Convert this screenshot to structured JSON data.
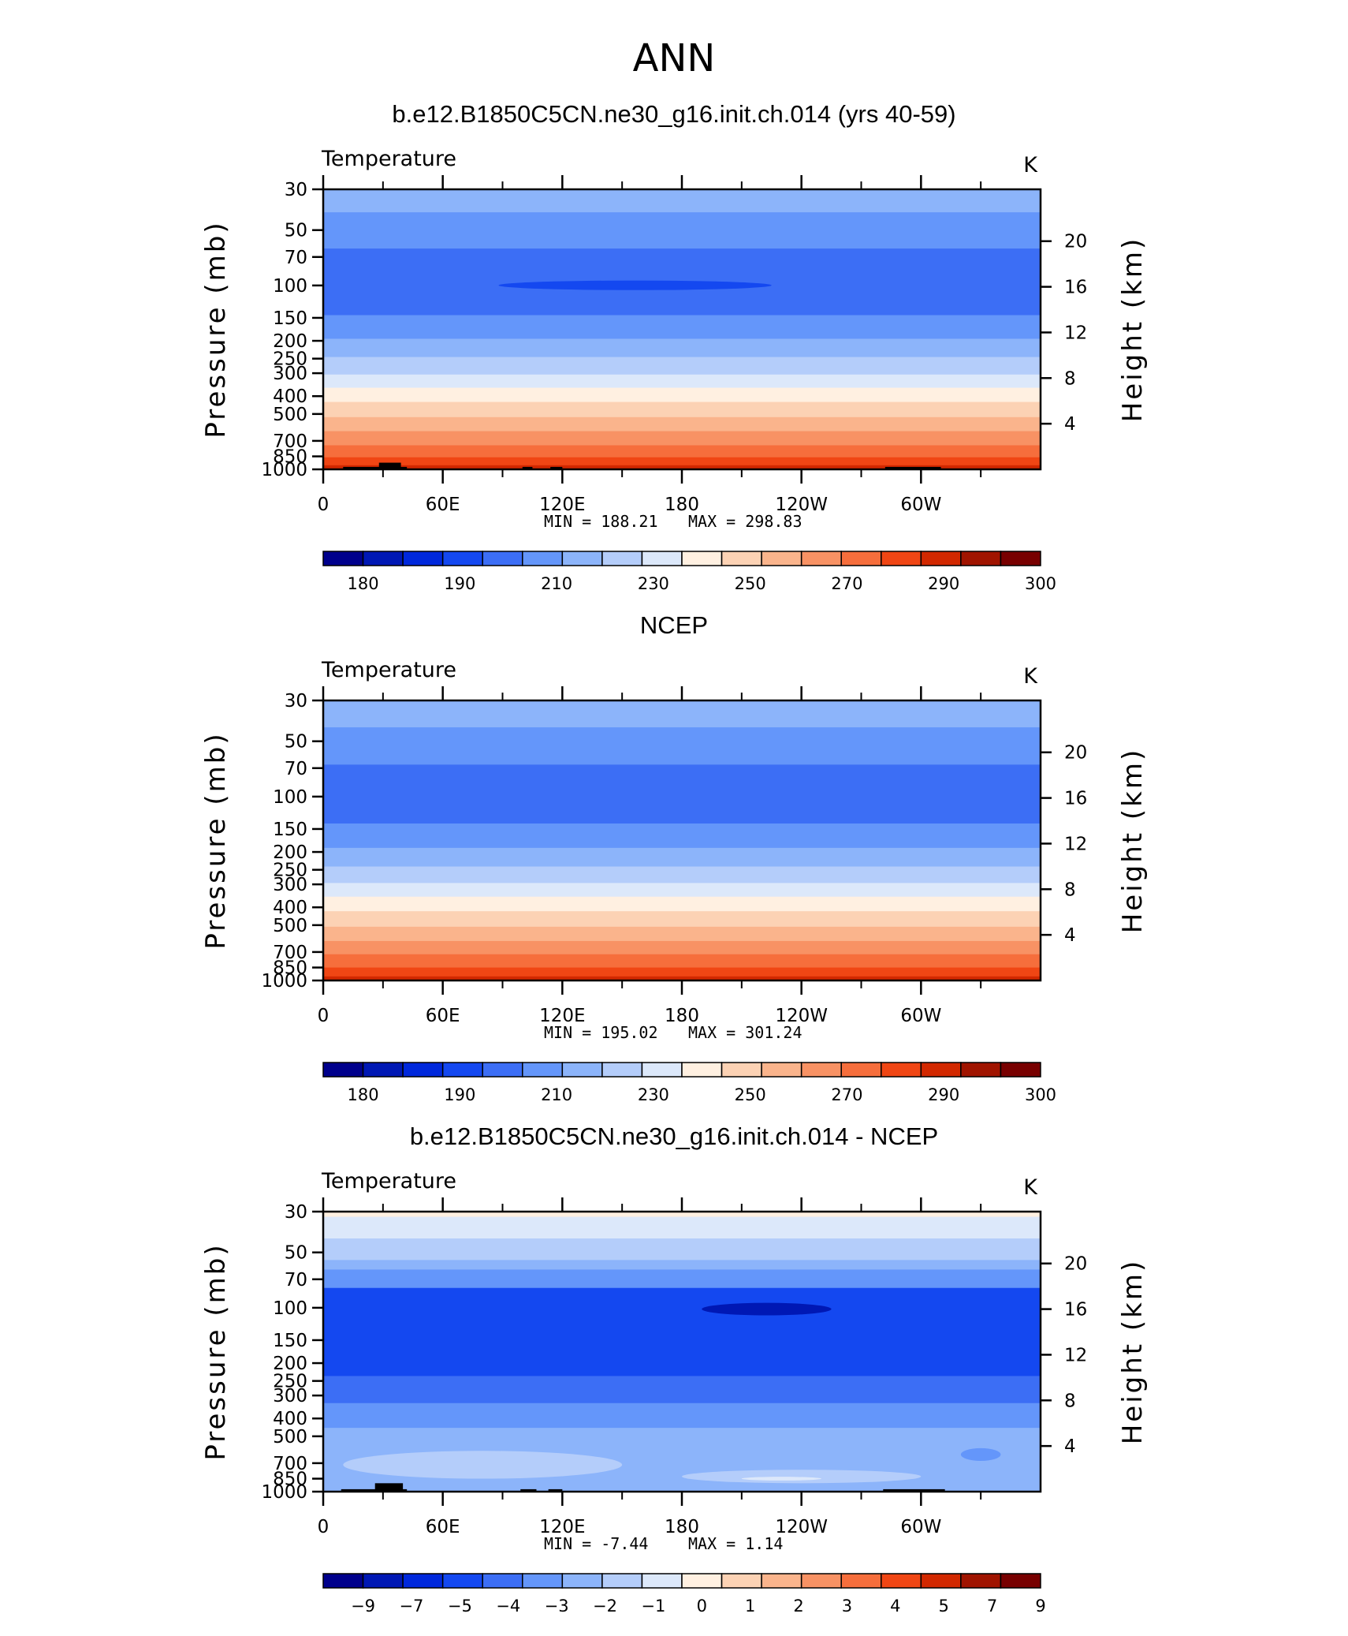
{
  "figure": {
    "season": "ANN"
  },
  "colormaps": {
    "temperature": [
      "#00008c",
      "#0018b4",
      "#0028dc",
      "#1448f0",
      "#3c6ef5",
      "#6496fa",
      "#8cb4fa",
      "#b4cdfa",
      "#dce8fa",
      "#fff0e1",
      "#fcd2b4",
      "#fab48c",
      "#f89264",
      "#f66e3c",
      "#f04614",
      "#d22800",
      "#a01400",
      "#780000"
    ],
    "difference": [
      "#00008c",
      "#0018b4",
      "#0028dc",
      "#1448f0",
      "#3c6ef5",
      "#6496fa",
      "#8cb4fa",
      "#b4cdfa",
      "#dce8fa",
      "#fff0e1",
      "#fcd2b4",
      "#fab48c",
      "#f89264",
      "#f66e3c",
      "#f04614",
      "#d22800",
      "#a01400",
      "#780000"
    ]
  },
  "chart_data": [
    {
      "type": "heatmap",
      "panel_title": "b.e12.B1850C5CN.ne30_g16.init.ch.014 (yrs 40-59)",
      "left_label": "Temperature",
      "units": "K",
      "ylabel": "Pressure (mb)",
      "y2label": "Height (km)",
      "xlim": [
        0,
        360
      ],
      "ylim": [
        1000,
        30
      ],
      "x_ticks": [
        "0",
        "60E",
        "120E",
        "180",
        "120W",
        "60W"
      ],
      "x_tick_values": [
        0,
        60,
        120,
        180,
        240,
        300
      ],
      "pressure_ticks": [
        "30",
        "50",
        "70",
        "100",
        "150",
        "200",
        "250",
        "300",
        "400",
        "500",
        "700",
        "850",
        "1000"
      ],
      "pressure_values": [
        30,
        50,
        70,
        100,
        150,
        200,
        250,
        300,
        400,
        500,
        700,
        850,
        1000
      ],
      "height_ticks": [
        "20",
        "16",
        "12",
        "8",
        "4"
      ],
      "height_values": [
        20,
        16,
        12,
        8,
        4
      ],
      "min_label": "MIN  =  188.21",
      "max_label": "MAX  =  298.83",
      "color_scheme": "temperature",
      "colorbar_labels": [
        "180",
        "190",
        "210",
        "230",
        "250",
        "270",
        "290",
        "300"
      ],
      "bands": [
        {
          "p_top": 30,
          "p_bottom": 40,
          "level": 6
        },
        {
          "p_top": 40,
          "p_bottom": 63,
          "level": 5
        },
        {
          "p_top": 63,
          "p_bottom": 145,
          "level": 4
        },
        {
          "p_top": 145,
          "p_bottom": 195,
          "level": 5
        },
        {
          "p_top": 195,
          "p_bottom": 245,
          "level": 6
        },
        {
          "p_top": 245,
          "p_bottom": 305,
          "level": 7
        },
        {
          "p_top": 305,
          "p_bottom": 360,
          "level": 8
        },
        {
          "p_top": 360,
          "p_bottom": 430,
          "level": 9
        },
        {
          "p_top": 430,
          "p_bottom": 520,
          "level": 10
        },
        {
          "p_top": 520,
          "p_bottom": 620,
          "level": 11
        },
        {
          "p_top": 620,
          "p_bottom": 740,
          "level": 12
        },
        {
          "p_top": 740,
          "p_bottom": 860,
          "level": 13
        },
        {
          "p_top": 860,
          "p_bottom": 950,
          "level": 14
        },
        {
          "p_top": 950,
          "p_bottom": 1000,
          "level": 15
        }
      ],
      "blobs": [
        {
          "lon_min": 88,
          "lon_max": 225,
          "p_top": 94,
          "p_bottom": 106,
          "level": 3
        }
      ],
      "topography": [
        {
          "lon_min": 10,
          "lon_max": 42,
          "p_top": 970
        },
        {
          "lon_min": 28,
          "lon_max": 39,
          "p_top": 920
        },
        {
          "lon_min": 100,
          "lon_max": 105,
          "p_top": 970
        },
        {
          "lon_min": 114,
          "lon_max": 120,
          "p_top": 970
        },
        {
          "lon_min": 282,
          "lon_max": 310,
          "p_top": 970
        }
      ]
    },
    {
      "type": "heatmap",
      "panel_title": "NCEP",
      "left_label": "Temperature",
      "units": "K",
      "ylabel": "Pressure (mb)",
      "y2label": "Height (km)",
      "xlim": [
        0,
        360
      ],
      "ylim": [
        1000,
        30
      ],
      "x_ticks": [
        "0",
        "60E",
        "120E",
        "180",
        "120W",
        "60W"
      ],
      "x_tick_values": [
        0,
        60,
        120,
        180,
        240,
        300
      ],
      "pressure_ticks": [
        "30",
        "50",
        "70",
        "100",
        "150",
        "200",
        "250",
        "300",
        "400",
        "500",
        "700",
        "850",
        "1000"
      ],
      "pressure_values": [
        30,
        50,
        70,
        100,
        150,
        200,
        250,
        300,
        400,
        500,
        700,
        850,
        1000
      ],
      "height_ticks": [
        "20",
        "16",
        "12",
        "8",
        "4"
      ],
      "height_values": [
        20,
        16,
        12,
        8,
        4
      ],
      "min_label": "MIN  =  195.02",
      "max_label": "MAX  =  301.24",
      "color_scheme": "temperature",
      "colorbar_labels": [
        "180",
        "190",
        "210",
        "230",
        "250",
        "270",
        "290",
        "300"
      ],
      "bands": [
        {
          "p_top": 30,
          "p_bottom": 42,
          "level": 6
        },
        {
          "p_top": 42,
          "p_bottom": 67,
          "level": 5
        },
        {
          "p_top": 67,
          "p_bottom": 140,
          "level": 4
        },
        {
          "p_top": 140,
          "p_bottom": 190,
          "level": 5
        },
        {
          "p_top": 190,
          "p_bottom": 240,
          "level": 6
        },
        {
          "p_top": 240,
          "p_bottom": 295,
          "level": 7
        },
        {
          "p_top": 295,
          "p_bottom": 350,
          "level": 8
        },
        {
          "p_top": 350,
          "p_bottom": 420,
          "level": 9
        },
        {
          "p_top": 420,
          "p_bottom": 510,
          "level": 10
        },
        {
          "p_top": 510,
          "p_bottom": 610,
          "level": 11
        },
        {
          "p_top": 610,
          "p_bottom": 720,
          "level": 12
        },
        {
          "p_top": 720,
          "p_bottom": 850,
          "level": 13
        },
        {
          "p_top": 850,
          "p_bottom": 950,
          "level": 14
        },
        {
          "p_top": 950,
          "p_bottom": 1000,
          "level": 15
        }
      ],
      "blobs": [],
      "topography": []
    },
    {
      "type": "heatmap",
      "panel_title": "b.e12.B1850C5CN.ne30_g16.init.ch.014 - NCEP",
      "left_label": "Temperature",
      "units": "K",
      "ylabel": "Pressure (mb)",
      "y2label": "Height (km)",
      "xlim": [
        0,
        360
      ],
      "ylim": [
        1000,
        30
      ],
      "x_ticks": [
        "0",
        "60E",
        "120E",
        "180",
        "120W",
        "60W"
      ],
      "x_tick_values": [
        0,
        60,
        120,
        180,
        240,
        300
      ],
      "pressure_ticks": [
        "30",
        "50",
        "70",
        "100",
        "150",
        "200",
        "250",
        "300",
        "400",
        "500",
        "700",
        "850",
        "1000"
      ],
      "pressure_values": [
        30,
        50,
        70,
        100,
        150,
        200,
        250,
        300,
        400,
        500,
        700,
        850,
        1000
      ],
      "height_ticks": [
        "20",
        "16",
        "12",
        "8",
        "4"
      ],
      "height_values": [
        20,
        16,
        12,
        8,
        4
      ],
      "min_label": "MIN  =    -7.44",
      "max_label": "MAX  =     1.14",
      "color_scheme": "difference",
      "colorbar_labels": [
        "−9",
        "−7",
        "−5",
        "−4",
        "−3",
        "−2",
        "−1",
        "0",
        "1",
        "2",
        "3",
        "4",
        "5",
        "7",
        "9"
      ],
      "bands": [
        {
          "p_top": 30,
          "p_bottom": 32,
          "level": 9
        },
        {
          "p_top": 32,
          "p_bottom": 42,
          "level": 8
        },
        {
          "p_top": 42,
          "p_bottom": 55,
          "level": 7
        },
        {
          "p_top": 55,
          "p_bottom": 62,
          "level": 6
        },
        {
          "p_top": 62,
          "p_bottom": 78,
          "level": 5
        },
        {
          "p_top": 78,
          "p_bottom": 235,
          "level": 3
        },
        {
          "p_top": 235,
          "p_bottom": 330,
          "level": 4
        },
        {
          "p_top": 330,
          "p_bottom": 450,
          "level": 5
        },
        {
          "p_top": 450,
          "p_bottom": 1000,
          "level": 6
        }
      ],
      "blobs": [
        {
          "lon_min": 190,
          "lon_max": 255,
          "p_top": 94,
          "p_bottom": 110,
          "level": 1
        },
        {
          "lon_min": 10,
          "lon_max": 150,
          "p_top": 600,
          "p_bottom": 850,
          "level": 7
        },
        {
          "lon_min": 180,
          "lon_max": 300,
          "p_top": 760,
          "p_bottom": 900,
          "level": 7
        },
        {
          "lon_min": 210,
          "lon_max": 250,
          "p_top": 830,
          "p_bottom": 870,
          "level": 8
        },
        {
          "lon_min": 320,
          "lon_max": 340,
          "p_top": 580,
          "p_bottom": 680,
          "level": 5
        }
      ],
      "topography": [
        {
          "lon_min": 9,
          "lon_max": 42,
          "p_top": 970
        },
        {
          "lon_min": 26,
          "lon_max": 40,
          "p_top": 900
        },
        {
          "lon_min": 99,
          "lon_max": 107,
          "p_top": 970
        },
        {
          "lon_min": 113,
          "lon_max": 120,
          "p_top": 970
        },
        {
          "lon_min": 281,
          "lon_max": 312,
          "p_top": 970
        }
      ]
    }
  ]
}
